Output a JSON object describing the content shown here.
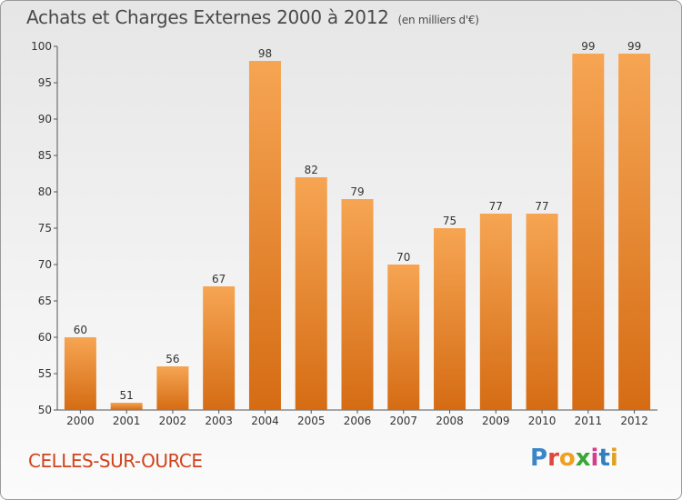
{
  "title": "Achats et Charges Externes 2000 à 2012",
  "unit_note": "(en milliers d'€)",
  "location": "CELLES-SUR-OURCE",
  "logo": {
    "letters": [
      "P",
      "r",
      "o",
      "x",
      "i",
      "t",
      "i"
    ],
    "colors": [
      "#3a86c8",
      "#e2463b",
      "#f0a020",
      "#3aa635",
      "#d43c8c",
      "#2f80c0",
      "#e0a020"
    ]
  },
  "colors": {
    "bar_top": "#f6a553",
    "bar_bottom": "#d56c14",
    "title": "#4a4a4a",
    "location": "#d0441c"
  },
  "chart_data": {
    "type": "bar",
    "categories": [
      "2000",
      "2001",
      "2002",
      "2003",
      "2004",
      "2005",
      "2006",
      "2007",
      "2008",
      "2009",
      "2010",
      "2011",
      "2012"
    ],
    "values": [
      60,
      51,
      56,
      67,
      98,
      82,
      79,
      70,
      75,
      77,
      77,
      99,
      99
    ],
    "data_labels": [
      "60",
      "51",
      "56",
      "67",
      "98",
      "82",
      "79",
      "70",
      "75",
      "77",
      "77",
      "99",
      "99"
    ],
    "ylim": [
      50,
      100
    ],
    "yticks": [
      50,
      55,
      60,
      65,
      70,
      75,
      80,
      85,
      90,
      95,
      100
    ],
    "grid": false,
    "xlabel": "",
    "ylabel": ""
  }
}
